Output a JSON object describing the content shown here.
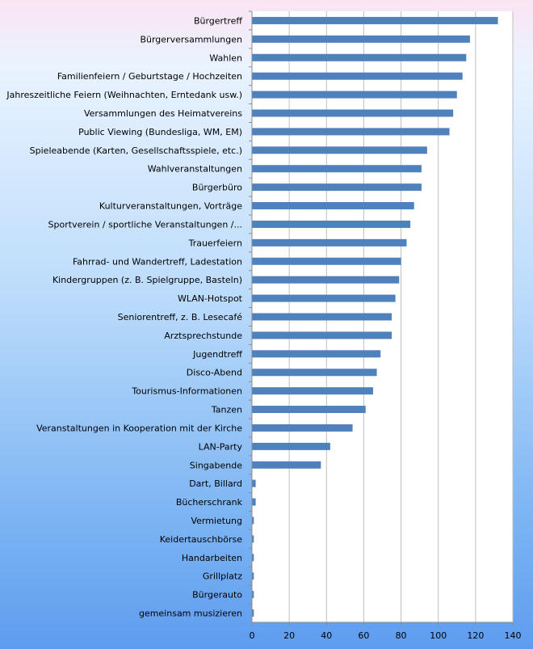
{
  "chart_data": {
    "type": "bar",
    "orientation": "horizontal",
    "categories": [
      "Bürgertreff",
      "Bürgerversammlungen",
      "Wahlen",
      "Familienfeiern / Geburtstage / Hochzeiten",
      "Jahreszeitliche Feiern (Weihnachten, Erntedank usw.)",
      "Versammlungen des Heimatvereins",
      "Public Viewing (Bundesliga, WM, EM)",
      "Spieleabende (Karten, Gesellschaftsspiele, etc.)",
      "Wahlveranstaltungen",
      "Bürgerbüro",
      "Kulturveranstaltungen, Vorträge",
      "Sportverein / sportliche Veranstaltungen /...",
      "Trauerfeiern",
      "Fahrrad- und Wandertreff, Ladestation",
      "Kindergruppen (z. B. Spielgruppe, Basteln)",
      "WLAN-Hotspot",
      "Seniorentreff, z. B. Lesecafé",
      "Arztsprechstunde",
      "Jugendtreff",
      "Disco-Abend",
      "Tourismus-Informationen",
      "Tanzen",
      "Veranstaltungen in Kooperation mit der Kirche",
      "LAN-Party",
      "Singabende",
      "Dart, Billard",
      "Bücherschrank",
      "Vermietung",
      "Keidertauschbörse",
      "Handarbeiten",
      "Grillplatz",
      "Bürgerauto",
      "gemeinsam musizieren"
    ],
    "values": [
      132,
      117,
      115,
      113,
      110,
      108,
      106,
      94,
      91,
      91,
      87,
      85,
      83,
      80,
      79,
      77,
      75,
      75,
      69,
      67,
      65,
      61,
      54,
      42,
      37,
      2,
      2,
      1,
      1,
      1,
      1,
      1,
      1
    ],
    "xlim": [
      0,
      140
    ],
    "xticks": [
      0,
      20,
      40,
      60,
      80,
      100,
      120,
      140
    ],
    "title": "",
    "xlabel": "",
    "ylabel": "",
    "grid": "vertical",
    "legend": "none",
    "colors": {
      "bar": "#4f81bd",
      "plot_background": "#ffffff",
      "gridline": "#bfbfbf",
      "axis": "#8c8c8c"
    }
  }
}
